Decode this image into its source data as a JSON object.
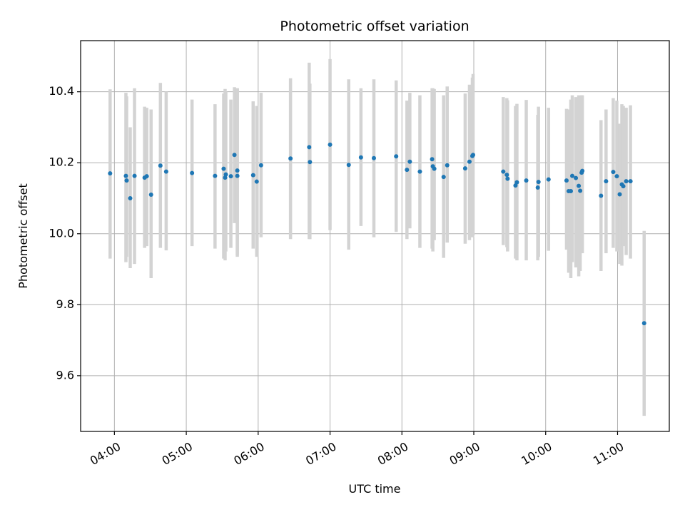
{
  "chart_data": {
    "type": "scatter",
    "title": "Photometric offset variation",
    "xlabel": "UTC time",
    "ylabel": "Photometric offset",
    "grid": true,
    "legend": "none",
    "x_unit": "hours (UTC, decimal)",
    "xlim": [
      3.53,
      11.72
    ],
    "ylim": [
      9.443,
      10.544
    ],
    "x_ticks": [
      {
        "value": 4,
        "label": "04:00"
      },
      {
        "value": 5,
        "label": "05:00"
      },
      {
        "value": 6,
        "label": "06:00"
      },
      {
        "value": 7,
        "label": "07:00"
      },
      {
        "value": 8,
        "label": "08:00"
      },
      {
        "value": 9,
        "label": "09:00"
      },
      {
        "value": 10,
        "label": "10:00"
      },
      {
        "value": 11,
        "label": "11:00"
      }
    ],
    "y_ticks": [
      {
        "value": 9.6,
        "label": "9.6"
      },
      {
        "value": 9.8,
        "label": "9.8"
      },
      {
        "value": 10.0,
        "label": "10.0"
      },
      {
        "value": 10.2,
        "label": "10.2"
      },
      {
        "value": 10.4,
        "label": "10.4"
      }
    ],
    "series": [
      {
        "color": "#1f77b4",
        "errorbar_color": "#d3d3d3",
        "x": [
          3.94,
          4.16,
          4.17,
          4.22,
          4.28,
          4.42,
          4.45,
          4.51,
          4.64,
          4.72,
          5.08,
          5.4,
          5.52,
          5.54,
          5.55,
          5.62,
          5.67,
          5.71,
          5.71,
          5.93,
          5.98,
          6.04,
          6.45,
          6.71,
          6.72,
          7.0,
          7.26,
          7.43,
          7.61,
          7.92,
          8.07,
          8.11,
          8.25,
          8.42,
          8.43,
          8.45,
          8.58,
          8.63,
          8.88,
          8.94,
          8.98,
          8.99,
          9.41,
          9.46,
          9.47,
          9.58,
          9.6,
          9.73,
          9.89,
          9.9,
          10.04,
          10.29,
          10.32,
          10.35,
          10.37,
          10.42,
          10.46,
          10.48,
          10.5,
          10.51,
          10.77,
          10.84,
          10.94,
          10.99,
          11.03,
          11.06,
          11.08,
          11.12,
          11.18,
          11.37
        ],
        "y": [
          10.17,
          10.163,
          10.15,
          10.1,
          10.163,
          10.158,
          10.162,
          10.11,
          10.192,
          10.175,
          10.171,
          10.163,
          10.183,
          10.158,
          10.167,
          10.162,
          10.222,
          10.178,
          10.163,
          10.165,
          10.147,
          10.193,
          10.212,
          10.244,
          10.202,
          10.251,
          10.194,
          10.215,
          10.213,
          10.218,
          10.18,
          10.203,
          10.175,
          10.21,
          10.19,
          10.183,
          10.16,
          10.193,
          10.184,
          10.203,
          10.219,
          10.222,
          10.175,
          10.166,
          10.155,
          10.136,
          10.145,
          10.15,
          10.13,
          10.146,
          10.153,
          10.15,
          10.12,
          10.12,
          10.163,
          10.157,
          10.135,
          10.121,
          10.172,
          10.177,
          10.107,
          10.148,
          10.174,
          10.162,
          10.111,
          10.139,
          10.134,
          10.148,
          10.148,
          9.748
        ],
        "ylow": [
          9.93,
          9.92,
          9.935,
          9.903,
          9.915,
          9.96,
          9.965,
          9.875,
          9.96,
          9.953,
          9.965,
          9.958,
          9.93,
          9.925,
          9.95,
          9.96,
          10.03,
          9.935,
          9.94,
          9.958,
          9.935,
          9.99,
          9.985,
          9.985,
          9.985,
          10.01,
          9.955,
          10.022,
          9.99,
          10.005,
          9.985,
          10.015,
          9.96,
          9.958,
          9.95,
          9.982,
          9.932,
          9.975,
          9.972,
          9.982,
          9.99,
          9.995,
          9.968,
          9.962,
          9.95,
          9.93,
          9.925,
          9.925,
          9.925,
          9.935,
          9.952,
          9.955,
          9.89,
          9.875,
          9.92,
          9.905,
          9.88,
          9.895,
          9.96,
          9.945,
          9.895,
          9.945,
          9.96,
          9.95,
          9.915,
          9.91,
          9.965,
          9.94,
          9.93,
          9.487
        ],
        "yhigh": [
          10.407,
          10.397,
          10.387,
          10.3,
          10.41,
          10.358,
          10.355,
          10.35,
          10.425,
          10.4,
          10.378,
          10.365,
          10.395,
          10.408,
          10.4,
          10.378,
          10.413,
          10.41,
          10.41,
          10.373,
          10.36,
          10.397,
          10.438,
          10.482,
          10.423,
          10.492,
          10.435,
          10.41,
          10.435,
          10.432,
          10.375,
          10.397,
          10.39,
          10.41,
          10.41,
          10.408,
          10.39,
          10.415,
          10.395,
          10.42,
          10.44,
          10.45,
          10.385,
          10.382,
          10.376,
          10.36,
          10.366,
          10.377,
          10.335,
          10.358,
          10.355,
          10.352,
          10.35,
          10.378,
          10.39,
          10.385,
          10.39,
          10.355,
          10.39,
          10.39,
          10.32,
          10.35,
          10.382,
          10.375,
          10.31,
          10.365,
          10.36,
          10.355,
          10.362,
          10.008
        ]
      }
    ]
  }
}
